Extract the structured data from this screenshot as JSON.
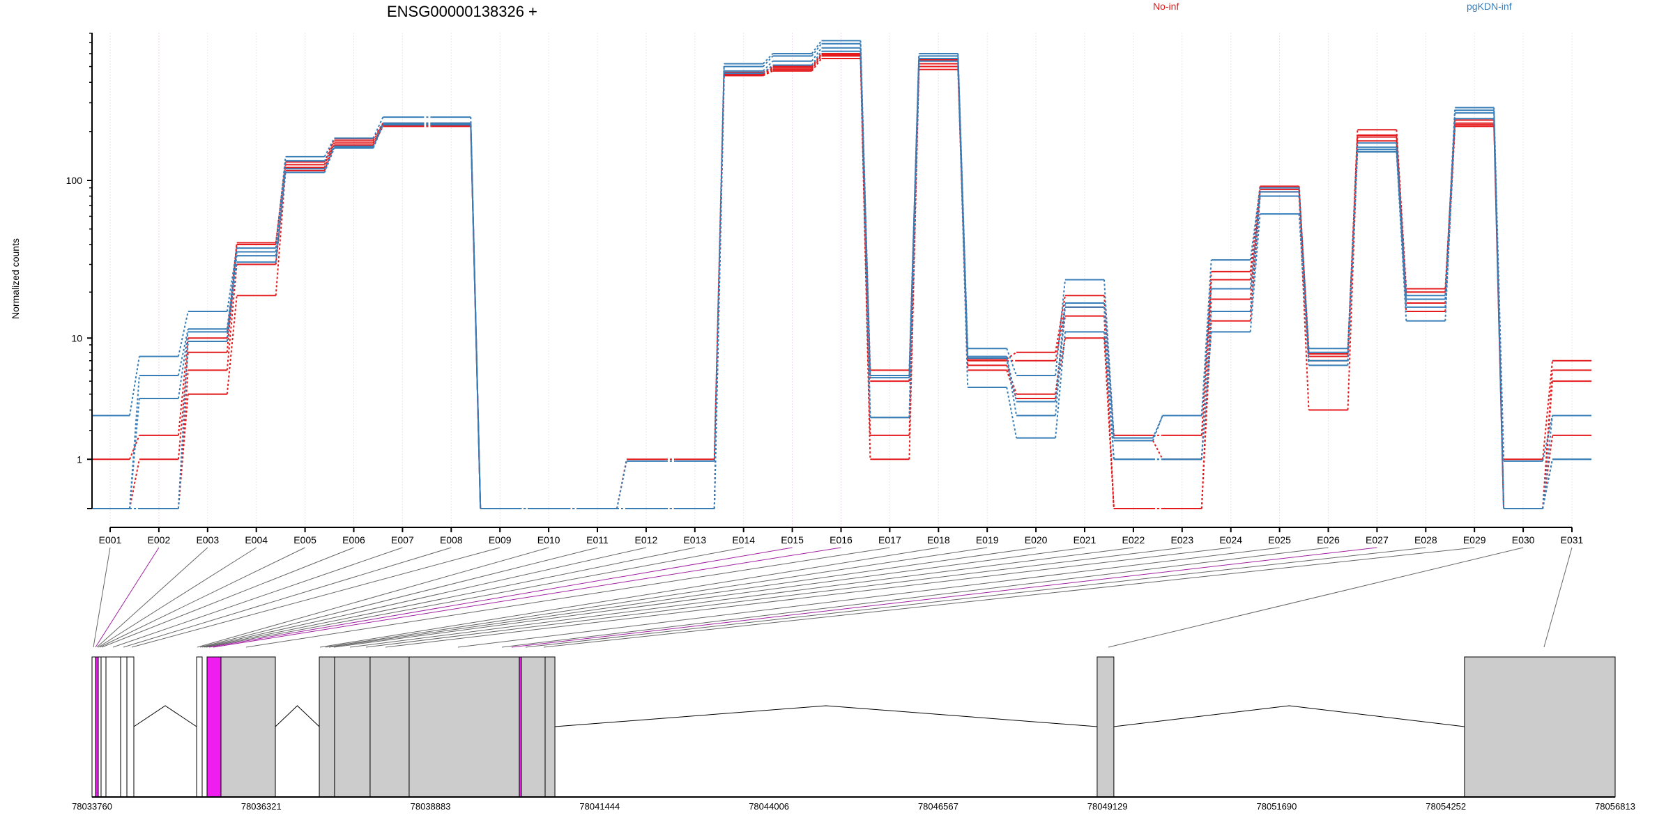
{
  "chart_data": {
    "type": "line",
    "title": "ENSG00000138326 +",
    "ylabel": "Normalized counts",
    "xlabel": "",
    "y_scale": "log10(count+1)",
    "ylim": [
      0,
      805
    ],
    "y_ticks": [
      {
        "value": 1,
        "label": "1"
      },
      {
        "value": 10,
        "label": "10"
      },
      {
        "value": 100,
        "label": "100"
      }
    ],
    "legend_placement": "top",
    "exons": [
      "E001",
      "E002",
      "E003",
      "E004",
      "E005",
      "E006",
      "E007",
      "E008",
      "E009",
      "E010",
      "E011",
      "E012",
      "E013",
      "E014",
      "E015",
      "E016",
      "E017",
      "E018",
      "E019",
      "E020",
      "E021",
      "E022",
      "E023",
      "E024",
      "E025",
      "E026",
      "E027",
      "E028",
      "E029",
      "E030",
      "E031"
    ],
    "highlighted_exons": [
      "E002",
      "E015",
      "E016",
      "E027"
    ],
    "series": [
      {
        "name": "No-inf",
        "color": "#E41A1C",
        "samples": [
          [
            1,
            1.8,
            10,
            41,
            130,
            180,
            225,
            225,
            0,
            0,
            0,
            1,
            1,
            460,
            500,
            600,
            6,
            550,
            7.2,
            8,
            19,
            1.8,
            1.8,
            27,
            92,
            7.8,
            205,
            21,
            235,
            1,
            7
          ],
          [
            0,
            1,
            8,
            40,
            125,
            175,
            222,
            222,
            0,
            0,
            0,
            0,
            0,
            450,
            490,
            590,
            5,
            520,
            7,
            7,
            16,
            1.6,
            1,
            24,
            88,
            7.5,
            190,
            20,
            225,
            0,
            6
          ],
          [
            0,
            0,
            6,
            30,
            120,
            170,
            218,
            218,
            0,
            0,
            0,
            0,
            0,
            445,
            480,
            580,
            1.8,
            500,
            6.5,
            4,
            14,
            0,
            0,
            18,
            85,
            7,
            185,
            17,
            220,
            0,
            5
          ],
          [
            0,
            0,
            4,
            19,
            115,
            165,
            215,
            215,
            0,
            0,
            0,
            0,
            0,
            440,
            470,
            560,
            1,
            480,
            6,
            3.7,
            10,
            0,
            0,
            13,
            80,
            3,
            175,
            15,
            215,
            0,
            1.8
          ]
        ]
      },
      {
        "name": "pgKDN-inf",
        "color": "#377EB8",
        "samples": [
          [
            2.7,
            7.5,
            15,
            38,
            140,
            182,
            245,
            245,
            0,
            0,
            0,
            0.95,
            0.95,
            520,
            600,
            720,
            5.5,
            600,
            8.5,
            5.5,
            24,
            1.7,
            2.7,
            32,
            90,
            8.5,
            170,
            19,
            280,
            0.95,
            2.7
          ],
          [
            0,
            5.5,
            11.5,
            36,
            132,
            162,
            225,
            225,
            0,
            0,
            0,
            0,
            0,
            500,
            580,
            690,
            5.3,
            580,
            7.5,
            3.5,
            17,
            1.6,
            2.7,
            21,
            85,
            8,
            160,
            18,
            270,
            0,
            2.7
          ],
          [
            0,
            3.7,
            11,
            34,
            118,
            160,
            222,
            222,
            0,
            0,
            0,
            0,
            0,
            470,
            540,
            650,
            2.6,
            560,
            7.3,
            2.7,
            16,
            1,
            1,
            15,
            80,
            7,
            155,
            16,
            260,
            0,
            1
          ],
          [
            0,
            0,
            9.5,
            31,
            112,
            158,
            220,
            220,
            0,
            0,
            0,
            0,
            0,
            455,
            510,
            620,
            2.6,
            540,
            4.5,
            1.7,
            11,
            1,
            1,
            11,
            62,
            6.5,
            150,
            13,
            240,
            0,
            1
          ]
        ]
      }
    ],
    "gene_model": {
      "range": [
        78033760,
        78056813
      ],
      "tick_labels": [
        "78033760",
        "78036321",
        "78038883",
        "78041444",
        "78044006",
        "78046567",
        "78049129",
        "78051690",
        "78054252",
        "78056813"
      ],
      "boxes": [
        {
          "start": 78033760,
          "end": 78033813,
          "kind": "plain"
        },
        {
          "start": 78033813,
          "end": 78033855,
          "kind": "highlight"
        },
        {
          "start": 78033855,
          "end": 78033897,
          "kind": "plain"
        },
        {
          "start": 78033897,
          "end": 78033971,
          "kind": "plain"
        },
        {
          "start": 78033971,
          "end": 78034193,
          "kind": "plain"
        },
        {
          "start": 78034193,
          "end": 78034288,
          "kind": "plain"
        },
        {
          "start": 78034288,
          "end": 78034393,
          "kind": "plain"
        },
        {
          "start": 78035343,
          "end": 78035427,
          "kind": "plain"
        },
        {
          "start": 78035501,
          "end": 78035712,
          "kind": "highlight"
        },
        {
          "start": 78035712,
          "end": 78036535,
          "kind": "filled"
        },
        {
          "start": 78037200,
          "end": 78037431,
          "kind": "filled"
        },
        {
          "start": 78037431,
          "end": 78037969,
          "kind": "filled"
        },
        {
          "start": 78037969,
          "end": 78038560,
          "kind": "filled"
        },
        {
          "start": 78038560,
          "end": 78040227,
          "kind": "filled"
        },
        {
          "start": 78040227,
          "end": 78040259,
          "kind": "highlight"
        },
        {
          "start": 78040259,
          "end": 78040618,
          "kind": "filled"
        },
        {
          "start": 78040618,
          "end": 78040766,
          "kind": "filled"
        },
        {
          "start": 78048973,
          "end": 78049226,
          "kind": "filled"
        },
        {
          "start": 78054533,
          "end": 78056813,
          "kind": "filled"
        }
      ],
      "introns": [
        [
          78034393,
          78035343
        ],
        [
          78036535,
          78037200
        ],
        [
          78040766,
          78048973
        ],
        [
          78049226,
          78054533
        ]
      ],
      "exon_positions": [
        78033781,
        78033813,
        78033834,
        78033855,
        78033876,
        78033908,
        78034077,
        78034235,
        78034361,
        78035353,
        78035395,
        78035427,
        78035459,
        78035490,
        78035532,
        78035596,
        78036092,
        78037210,
        78037294,
        78037347,
        78037421,
        78037664,
        78037906,
        78038202,
        78039299,
        78039963,
        78040111,
        78040322,
        78040596,
        78049142,
        78055736
      ]
    },
    "colors": {
      "highlight": "#F01DEF",
      "box_fill": "#CCCCCC",
      "grid": "#E6E6EE",
      "grid_highlight": "#F2D2EE"
    }
  }
}
